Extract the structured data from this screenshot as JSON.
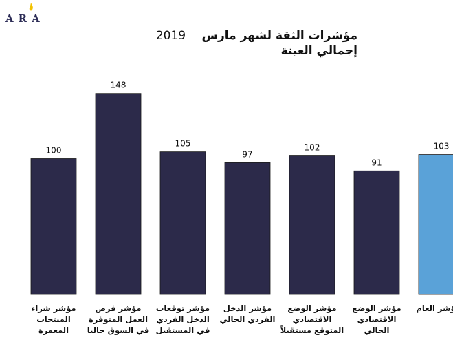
{
  "logo": {
    "text": "ARA",
    "flame_color": "#f2c200"
  },
  "chart_data": {
    "type": "bar",
    "title": "مؤشرات الثقة لشهر مارس",
    "title_year": "2019",
    "subtitle": "إجمالي العينة",
    "categories": [
      "مؤشر شراء المنتجات المعمرة",
      "مؤشر فرص العمل المتوفرة في السوق حاليا",
      "مؤشر توقعات الدخل الفردي في المستقبل",
      "مؤشر الدخل الفردي الحالي",
      "مؤشر الوضع الاقتصادي المتوقع مستقبلاً",
      "مؤشر الوضع الاقتصادي الحالي",
      "المؤشر العام"
    ],
    "values": [
      100,
      148,
      105,
      97,
      102,
      91,
      103
    ],
    "colors": [
      "#2c2a4a",
      "#2c2a4a",
      "#2c2a4a",
      "#2c2a4a",
      "#2c2a4a",
      "#2c2a4a",
      "#5aa2d8"
    ],
    "ylim": [
      0,
      160
    ],
    "grid": false,
    "legend": "none"
  }
}
